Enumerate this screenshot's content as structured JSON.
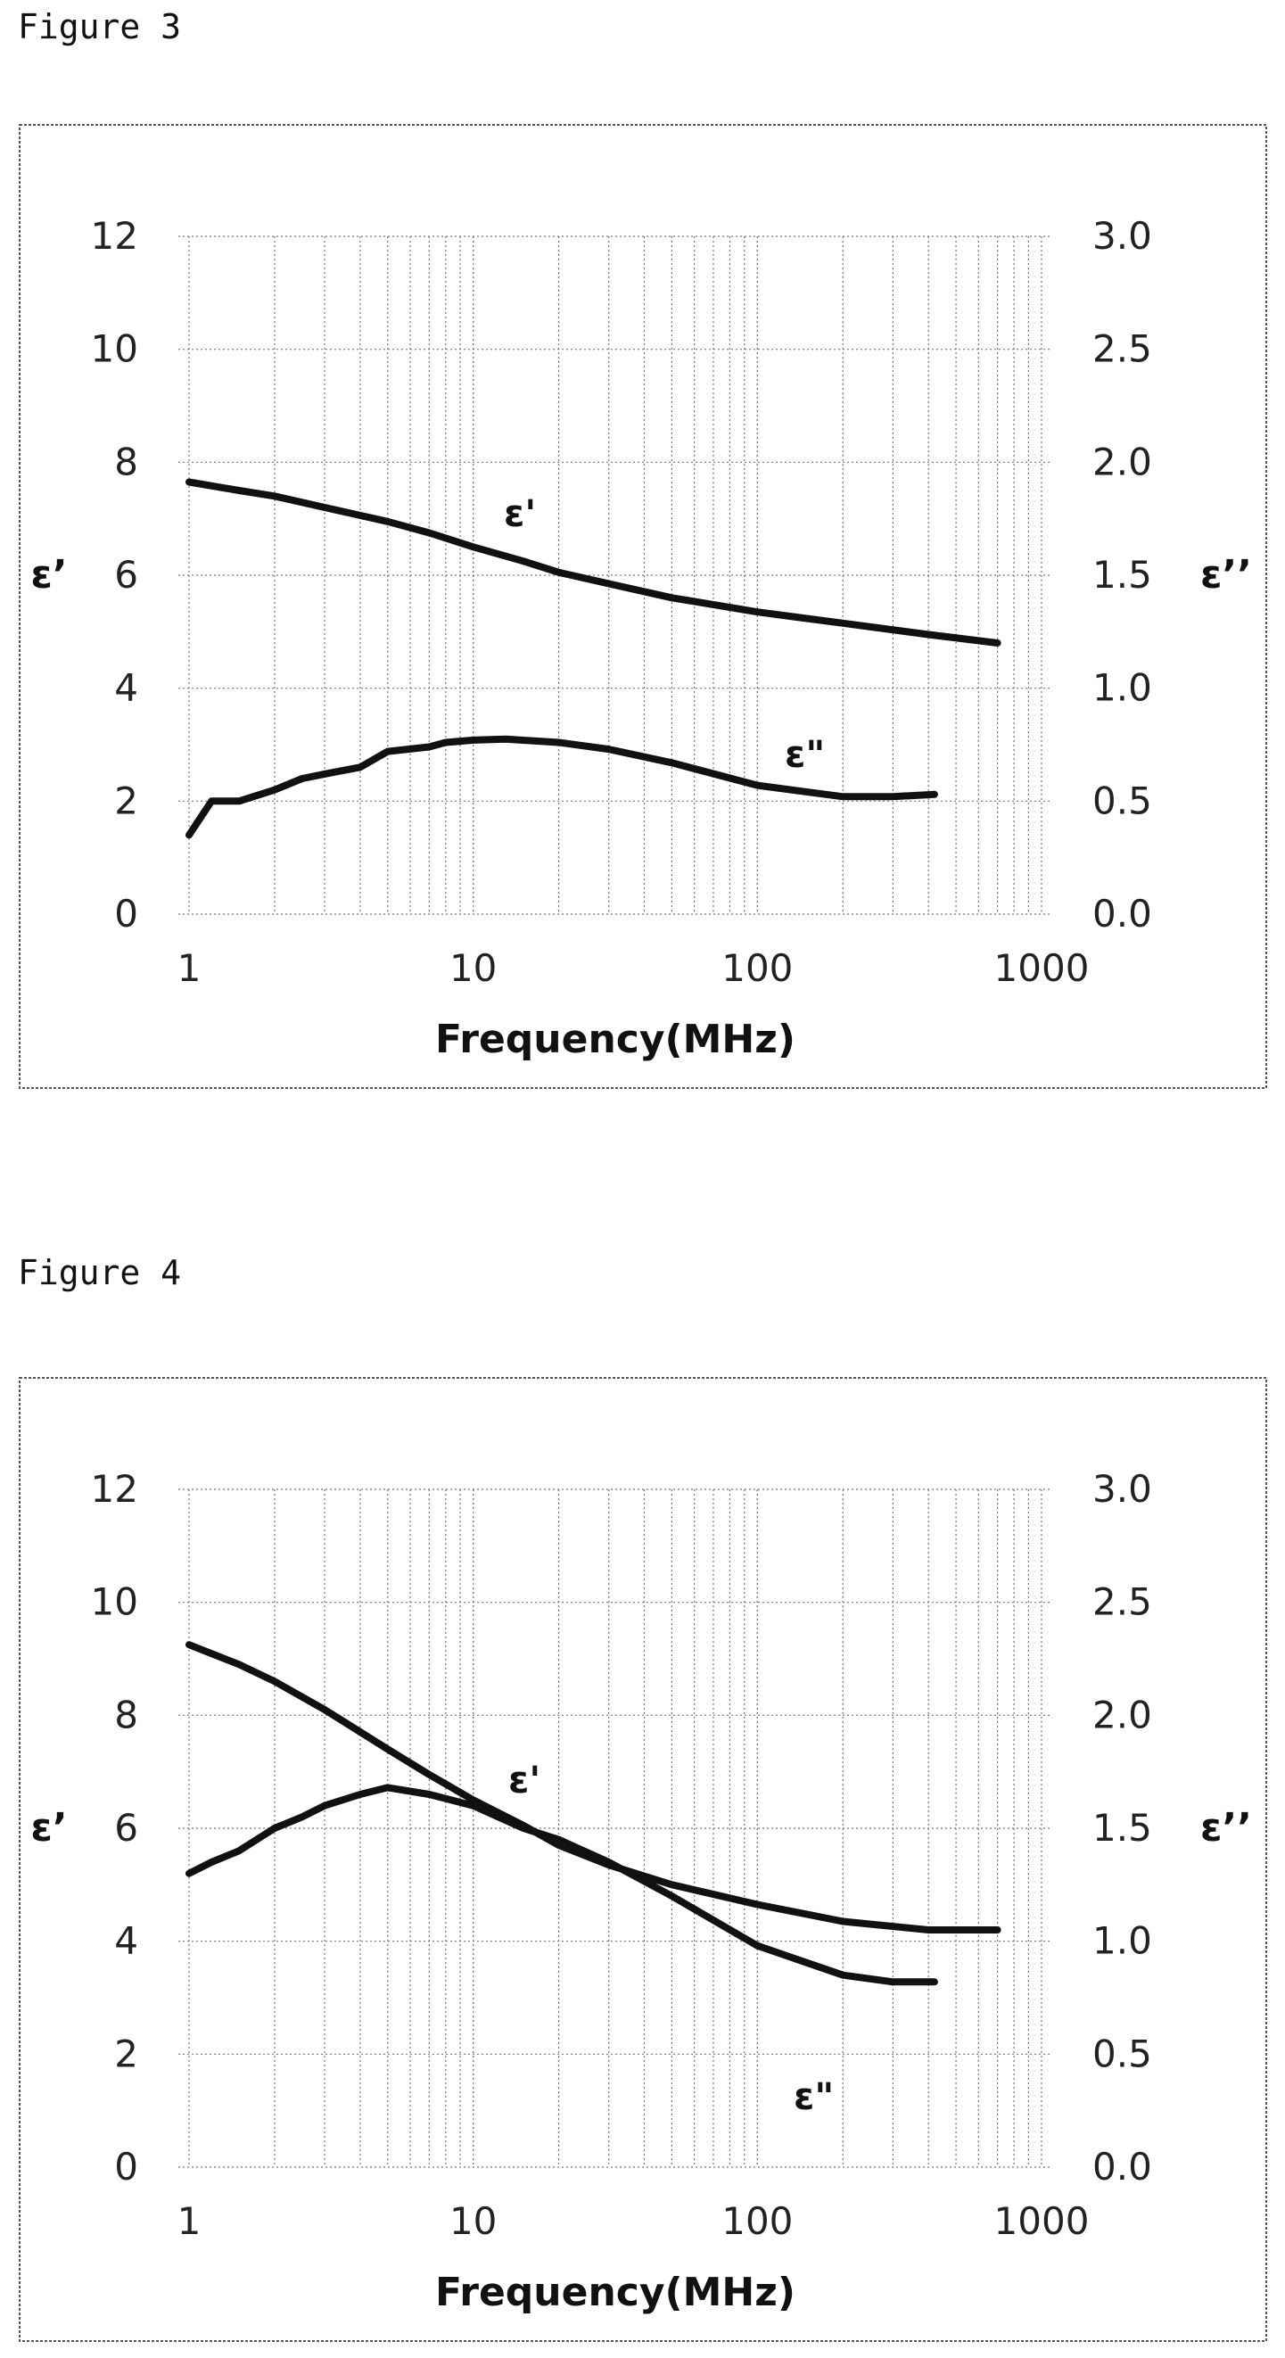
{
  "figures": [
    {
      "id": "fig3",
      "label": "Figure 3"
    },
    {
      "id": "fig4",
      "label": "Figure 4"
    }
  ],
  "chart_data": [
    {
      "type": "line",
      "xlabel": "Frequency(MHz)",
      "ylabel": "ε’",
      "y2label": "ε’’",
      "x_scale": "log",
      "xlim": [
        1,
        1000
      ],
      "ylim": [
        0,
        12
      ],
      "y2lim": [
        0.0,
        3.0
      ],
      "x_ticks": [
        "1",
        "10",
        "100",
        "1000"
      ],
      "y_ticks": [
        "0",
        "2",
        "4",
        "6",
        "8",
        "10",
        "12"
      ],
      "y2_ticks": [
        "0.0",
        "0.5",
        "1.0",
        "1.5",
        "2.0",
        "2.5",
        "3.0"
      ],
      "grid": true,
      "series": [
        {
          "name": "ε'",
          "axis": "left",
          "x": [
            1,
            1.5,
            2,
            3,
            5,
            7,
            10,
            15,
            20,
            30,
            50,
            100,
            200,
            400,
            700
          ],
          "y": [
            7.65,
            7.5,
            7.4,
            7.2,
            6.95,
            6.75,
            6.5,
            6.25,
            6.05,
            5.85,
            5.6,
            5.35,
            5.15,
            4.95,
            4.8
          ]
        },
        {
          "name": "ε\"",
          "axis": "right",
          "x": [
            1,
            1.2,
            1.5,
            2,
            2.5,
            3,
            4,
            5,
            7,
            8,
            10,
            13,
            20,
            30,
            50,
            100,
            200,
            300,
            420
          ],
          "y": [
            0.35,
            0.5,
            0.5,
            0.55,
            0.6,
            0.62,
            0.65,
            0.72,
            0.74,
            0.76,
            0.77,
            0.775,
            0.76,
            0.73,
            0.67,
            0.57,
            0.52,
            0.52,
            0.53
          ]
        }
      ],
      "annotations": [
        "ε'",
        "ε\""
      ]
    },
    {
      "type": "line",
      "xlabel": "Frequency(MHz)",
      "ylabel": "ε’",
      "y2label": "ε’’",
      "x_scale": "log",
      "xlim": [
        1,
        1000
      ],
      "ylim": [
        0,
        12
      ],
      "y2lim": [
        0.0,
        3.0
      ],
      "x_ticks": [
        "1",
        "10",
        "100",
        "1000"
      ],
      "y_ticks": [
        "0",
        "2",
        "4",
        "6",
        "8",
        "10",
        "12"
      ],
      "y2_ticks": [
        "0.0",
        "0.5",
        "1.0",
        "1.5",
        "2.0",
        "2.5",
        "3.0"
      ],
      "grid": true,
      "series": [
        {
          "name": "ε'",
          "axis": "left",
          "x": [
            1,
            1.5,
            2,
            3,
            5,
            7,
            10,
            15,
            20,
            30,
            50,
            100,
            200,
            400,
            600,
            700
          ],
          "y": [
            9.25,
            8.9,
            8.6,
            8.1,
            7.4,
            6.95,
            6.5,
            6.05,
            5.7,
            5.35,
            5.0,
            4.65,
            4.35,
            4.2,
            4.2,
            4.2
          ]
        },
        {
          "name": "ε\"",
          "axis": "right",
          "x": [
            1,
            1.2,
            1.5,
            2,
            2.5,
            3,
            4,
            5,
            7,
            10,
            15,
            20,
            30,
            50,
            100,
            200,
            300,
            420
          ],
          "y": [
            1.3,
            1.35,
            1.4,
            1.5,
            1.55,
            1.6,
            1.65,
            1.68,
            1.65,
            1.6,
            1.5,
            1.45,
            1.35,
            1.2,
            0.98,
            0.85,
            0.82,
            0.82
          ]
        }
      ],
      "annotations": [
        "ε'",
        "ε\""
      ]
    }
  ]
}
